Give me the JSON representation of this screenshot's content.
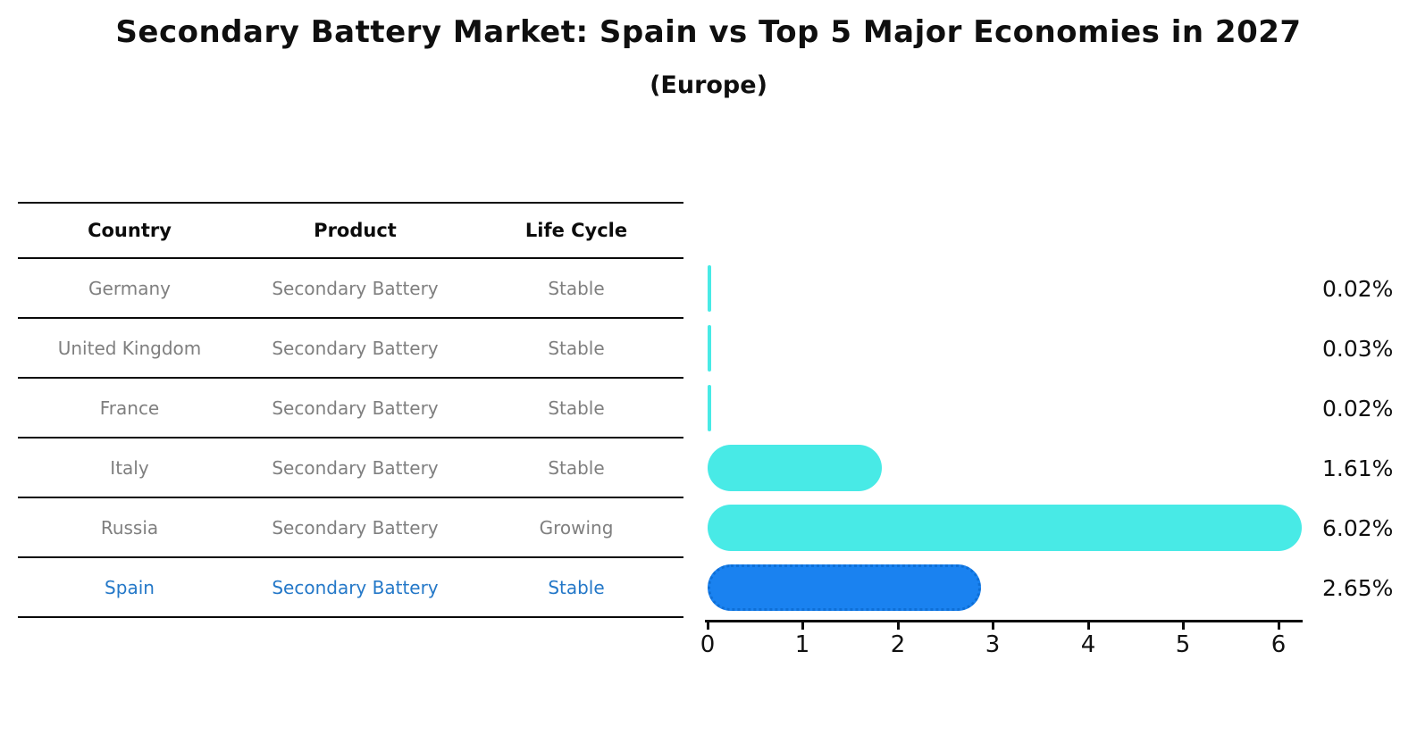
{
  "header": {
    "title": "Secondary Battery Market: Spain vs Top 5 Major Economies in 2027",
    "subtitle": "(Europe)"
  },
  "table": {
    "headers": [
      "Country",
      "Product",
      "Life Cycle"
    ],
    "rows": [
      {
        "country": "Germany",
        "product": "Secondary Battery",
        "life_cycle": "Stable",
        "value_label": "0.02%",
        "highlight": false
      },
      {
        "country": "United Kingdom",
        "product": "Secondary Battery",
        "life_cycle": "Stable",
        "value_label": "0.03%",
        "highlight": false
      },
      {
        "country": "France",
        "product": "Secondary Battery",
        "life_cycle": "Stable",
        "value_label": "0.02%",
        "highlight": false
      },
      {
        "country": "Italy",
        "product": "Secondary Battery",
        "life_cycle": "Stable",
        "value_label": "1.61%",
        "highlight": false
      },
      {
        "country": "Russia",
        "product": "Secondary Battery",
        "life_cycle": "Growing",
        "value_label": "6.02%",
        "highlight": false
      },
      {
        "country": "Spain",
        "product": "Secondary Battery",
        "life_cycle": "Stable",
        "value_label": "2.65%",
        "highlight": true
      }
    ]
  },
  "chart_data": {
    "type": "bar",
    "orientation": "horizontal",
    "title": "Secondary Battery Market: Spain vs Top 5 Major Economies in 2027",
    "subtitle": "(Europe)",
    "categories": [
      "Germany",
      "United Kingdom",
      "France",
      "Italy",
      "Russia",
      "Spain"
    ],
    "values": [
      0.02,
      0.03,
      0.02,
      1.61,
      6.02,
      2.65
    ],
    "value_labels": [
      "0.02%",
      "0.03%",
      "0.02%",
      "1.61%",
      "6.02%",
      "2.65%"
    ],
    "xticks": [
      0,
      1,
      2,
      3,
      4,
      5,
      6
    ],
    "xlim": [
      0,
      6.25
    ],
    "grid": false,
    "legend": false,
    "highlight_index": 5
  },
  "colors": {
    "bar": "#48eae6",
    "highlight_bar": "#1a82f0",
    "highlight_border": "#0e6fd6",
    "highlight_text": "#2478c8",
    "row_text": "#7f7f7f",
    "title_text": "#0f0f0f"
  }
}
